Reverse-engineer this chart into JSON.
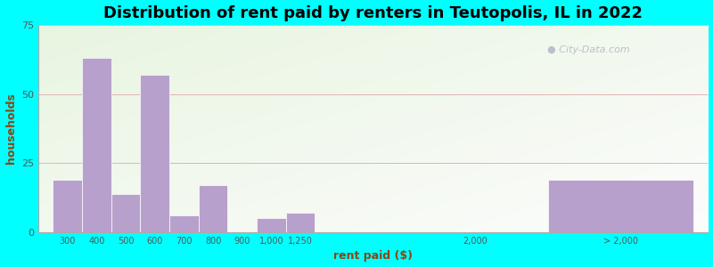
{
  "title": "Distribution of rent paid by renters in Teutopolis, IL in 2022",
  "xlabel": "rent paid ($)",
  "ylabel": "households",
  "title_fontsize": 13,
  "label_fontsize": 9,
  "background_color": "#00FFFF",
  "bar_color": "#b8a0cc",
  "categories": [
    "300",
    "400",
    "500",
    "600",
    "700",
    "800",
    "900",
    "1,000",
    "1,250",
    "2,000",
    "> 2,000"
  ],
  "values": [
    19,
    63,
    14,
    57,
    6,
    17,
    0,
    5,
    7,
    0,
    19
  ],
  "ylim": [
    0,
    75
  ],
  "yticks": [
    0,
    25,
    50,
    75
  ],
  "watermark": "City-Data.com",
  "xlim": [
    -0.5,
    22.5
  ],
  "positions": [
    0,
    1,
    2,
    3,
    4,
    5,
    6,
    7,
    8,
    14,
    17
  ],
  "bar_widths": [
    1,
    1,
    1,
    1,
    1,
    1,
    1,
    1,
    1,
    1,
    5
  ]
}
